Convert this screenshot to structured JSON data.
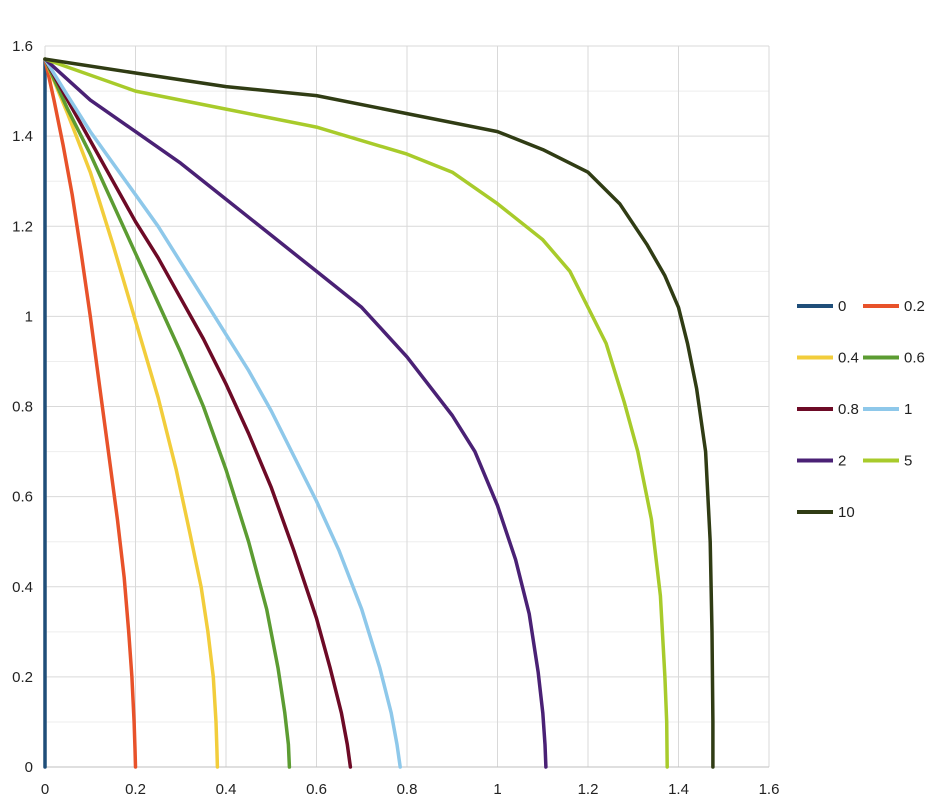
{
  "chart_data": {
    "type": "line",
    "title": "",
    "xlabel": "",
    "ylabel": "",
    "xlim": [
      0,
      1.6
    ],
    "ylim": [
      0,
      1.6
    ],
    "x_ticks": [
      "0",
      "0.2",
      "0.4",
      "0.6",
      "0.8",
      "1",
      "1.2",
      "1.4",
      "1.6"
    ],
    "y_ticks": [
      "0",
      "0.2",
      "0.4",
      "0.6",
      "0.8",
      "1",
      "1.2",
      "1.4",
      "1.6"
    ],
    "grid": true,
    "legend_position": "right",
    "series": [
      {
        "name": "0",
        "color": "#1f4e79",
        "points": [
          [
            0,
            1.571
          ],
          [
            0,
            0
          ]
        ]
      },
      {
        "name": "0.2",
        "color": "#e8522a",
        "points": [
          [
            0,
            1.571
          ],
          [
            0.02,
            1.48
          ],
          [
            0.04,
            1.38
          ],
          [
            0.06,
            1.27
          ],
          [
            0.08,
            1.14
          ],
          [
            0.1,
            1.0
          ],
          [
            0.12,
            0.85
          ],
          [
            0.14,
            0.7
          ],
          [
            0.16,
            0.55
          ],
          [
            0.175,
            0.42
          ],
          [
            0.185,
            0.3
          ],
          [
            0.192,
            0.2
          ],
          [
            0.197,
            0.1
          ],
          [
            0.199,
            0.04
          ],
          [
            0.2,
            0
          ]
        ]
      },
      {
        "name": "0.4",
        "color": "#f2cd3b",
        "points": [
          [
            0,
            1.571
          ],
          [
            0.05,
            1.45
          ],
          [
            0.1,
            1.32
          ],
          [
            0.15,
            1.16
          ],
          [
            0.2,
            0.99
          ],
          [
            0.25,
            0.82
          ],
          [
            0.29,
            0.66
          ],
          [
            0.32,
            0.52
          ],
          [
            0.345,
            0.4
          ],
          [
            0.36,
            0.3
          ],
          [
            0.372,
            0.2
          ],
          [
            0.378,
            0.1
          ],
          [
            0.38,
            0.04
          ],
          [
            0.381,
            0
          ]
        ]
      },
      {
        "name": "0.6",
        "color": "#5c9c32",
        "points": [
          [
            0,
            1.571
          ],
          [
            0.05,
            1.46
          ],
          [
            0.1,
            1.36
          ],
          [
            0.15,
            1.25
          ],
          [
            0.2,
            1.14
          ],
          [
            0.25,
            1.03
          ],
          [
            0.3,
            0.92
          ],
          [
            0.35,
            0.8
          ],
          [
            0.4,
            0.66
          ],
          [
            0.45,
            0.5
          ],
          [
            0.49,
            0.35
          ],
          [
            0.515,
            0.22
          ],
          [
            0.53,
            0.12
          ],
          [
            0.538,
            0.05
          ],
          [
            0.54,
            0
          ]
        ]
      },
      {
        "name": "0.8",
        "color": "#6d0a26",
        "points": [
          [
            0,
            1.571
          ],
          [
            0.05,
            1.48
          ],
          [
            0.1,
            1.39
          ],
          [
            0.15,
            1.3
          ],
          [
            0.2,
            1.21
          ],
          [
            0.25,
            1.13
          ],
          [
            0.3,
            1.04
          ],
          [
            0.35,
            0.95
          ],
          [
            0.4,
            0.85
          ],
          [
            0.45,
            0.74
          ],
          [
            0.5,
            0.62
          ],
          [
            0.55,
            0.48
          ],
          [
            0.6,
            0.33
          ],
          [
            0.63,
            0.22
          ],
          [
            0.655,
            0.12
          ],
          [
            0.668,
            0.05
          ],
          [
            0.675,
            0
          ]
        ]
      },
      {
        "name": "1",
        "color": "#8ec8ea",
        "points": [
          [
            0,
            1.571
          ],
          [
            0.05,
            1.49
          ],
          [
            0.1,
            1.41
          ],
          [
            0.15,
            1.34
          ],
          [
            0.2,
            1.27
          ],
          [
            0.25,
            1.2
          ],
          [
            0.3,
            1.12
          ],
          [
            0.35,
            1.04
          ],
          [
            0.4,
            0.96
          ],
          [
            0.45,
            0.88
          ],
          [
            0.5,
            0.79
          ],
          [
            0.55,
            0.69
          ],
          [
            0.6,
            0.59
          ],
          [
            0.65,
            0.48
          ],
          [
            0.7,
            0.35
          ],
          [
            0.74,
            0.22
          ],
          [
            0.765,
            0.12
          ],
          [
            0.778,
            0.05
          ],
          [
            0.785,
            0
          ]
        ]
      },
      {
        "name": "2",
        "color": "#4a2175",
        "points": [
          [
            0,
            1.571
          ],
          [
            0.1,
            1.48
          ],
          [
            0.2,
            1.41
          ],
          [
            0.3,
            1.34
          ],
          [
            0.4,
            1.26
          ],
          [
            0.5,
            1.18
          ],
          [
            0.6,
            1.1
          ],
          [
            0.7,
            1.02
          ],
          [
            0.8,
            0.91
          ],
          [
            0.9,
            0.78
          ],
          [
            0.95,
            0.7
          ],
          [
            1.0,
            0.58
          ],
          [
            1.04,
            0.46
          ],
          [
            1.07,
            0.34
          ],
          [
            1.09,
            0.21
          ],
          [
            1.1,
            0.12
          ],
          [
            1.105,
            0.05
          ],
          [
            1.107,
            0
          ]
        ]
      },
      {
        "name": "5",
        "color": "#a8cb2b",
        "points": [
          [
            0,
            1.571
          ],
          [
            0.2,
            1.5
          ],
          [
            0.4,
            1.46
          ],
          [
            0.6,
            1.42
          ],
          [
            0.8,
            1.36
          ],
          [
            0.9,
            1.32
          ],
          [
            1.0,
            1.25
          ],
          [
            1.1,
            1.17
          ],
          [
            1.16,
            1.1
          ],
          [
            1.2,
            1.02
          ],
          [
            1.24,
            0.94
          ],
          [
            1.28,
            0.81
          ],
          [
            1.31,
            0.7
          ],
          [
            1.34,
            0.55
          ],
          [
            1.36,
            0.38
          ],
          [
            1.37,
            0.2
          ],
          [
            1.374,
            0.1
          ],
          [
            1.375,
            0
          ]
        ]
      },
      {
        "name": "10",
        "color": "#303c14",
        "points": [
          [
            0,
            1.571
          ],
          [
            0.2,
            1.54
          ],
          [
            0.4,
            1.51
          ],
          [
            0.6,
            1.49
          ],
          [
            0.8,
            1.45
          ],
          [
            1.0,
            1.41
          ],
          [
            1.1,
            1.37
          ],
          [
            1.2,
            1.32
          ],
          [
            1.27,
            1.25
          ],
          [
            1.33,
            1.16
          ],
          [
            1.37,
            1.09
          ],
          [
            1.4,
            1.02
          ],
          [
            1.42,
            0.94
          ],
          [
            1.44,
            0.84
          ],
          [
            1.46,
            0.7
          ],
          [
            1.47,
            0.5
          ],
          [
            1.474,
            0.3
          ],
          [
            1.476,
            0.1
          ],
          [
            1.476,
            0
          ]
        ]
      }
    ]
  }
}
